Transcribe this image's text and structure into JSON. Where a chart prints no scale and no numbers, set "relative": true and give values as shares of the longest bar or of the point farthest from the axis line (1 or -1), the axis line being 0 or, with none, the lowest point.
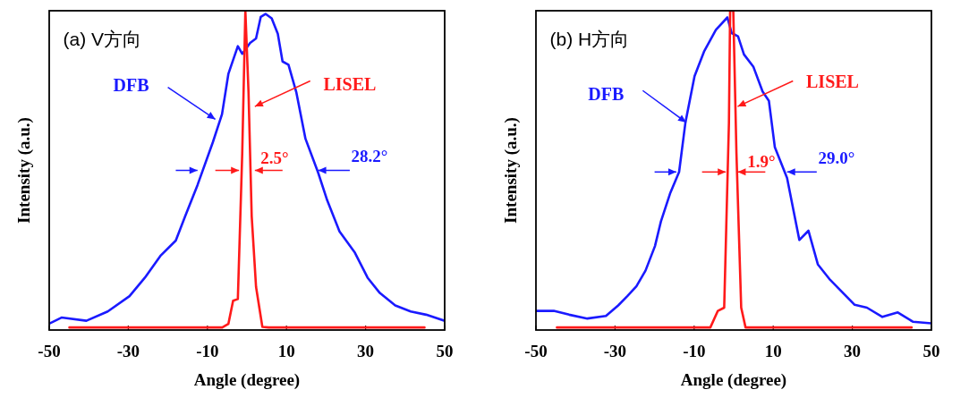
{
  "chart_data": [
    {
      "type": "line",
      "title": "(a) V方向",
      "xlabel": "Angle (degree)",
      "ylabel": "Intensity (a.u.)",
      "relative": true,
      "xlim": [
        -50,
        50
      ],
      "xticks": [
        -50,
        -30,
        -10,
        10,
        30,
        50
      ],
      "annotations": [
        "2.5°",
        "28.2°"
      ],
      "series": [
        {
          "name": "DFB",
          "color": "#1a1aff",
          "x": [
            -50,
            -46.9,
            -40.6,
            -35.2,
            -29.7,
            -25.8,
            -21.9,
            -18,
            -15.6,
            -12.5,
            -8.6,
            -6.3,
            -4.7,
            -2.3,
            -1.2,
            0.8,
            2.3,
            3.5,
            4.7,
            6.25,
            7.8,
            9,
            10.5,
            12.5,
            14.8,
            18,
            20.3,
            23.4,
            27.3,
            30.5,
            33.6,
            37.5,
            41.4,
            45.3,
            50
          ],
          "values": [
            0.02,
            0.039,
            0.029,
            0.058,
            0.106,
            0.164,
            0.232,
            0.28,
            0.357,
            0.454,
            0.589,
            0.676,
            0.802,
            0.889,
            0.865,
            0.899,
            0.913,
            0.981,
            0.99,
            0.976,
            0.928,
            0.841,
            0.831,
            0.744,
            0.599,
            0.493,
            0.406,
            0.309,
            0.242,
            0.164,
            0.116,
            0.077,
            0.058,
            0.048,
            0.029
          ]
        },
        {
          "name": "LISEL",
          "color": "#ff1a1a",
          "x": [
            -44.9,
            -6.25,
            -4.7,
            -3.5,
            -2.3,
            -1.2,
            -0.4,
            0.4,
            1.2,
            2.3,
            3.9,
            5.5,
            44.9
          ],
          "values": [
            0.008,
            0.008,
            0.019,
            0.092,
            0.097,
            0.551,
            1,
            0.744,
            0.357,
            0.135,
            0.01,
            0.008,
            0.008
          ]
        }
      ]
    },
    {
      "type": "line",
      "title": "(b) H方向",
      "xlabel": "Angle (degree)",
      "ylabel": "Intensity (a.u.)",
      "relative": true,
      "xlim": [
        -50,
        50
      ],
      "xticks": [
        -50,
        -30,
        -10,
        10,
        30,
        50
      ],
      "annotations": [
        "1.9°",
        "29.0°"
      ],
      "series": [
        {
          "name": "DFB",
          "color": "#1a1aff",
          "x": [
            -50,
            -45.5,
            -41.6,
            -37,
            -32.3,
            -29.2,
            -26.9,
            -24.6,
            -22.3,
            -19.9,
            -18.4,
            -16.1,
            -13.8,
            -12.2,
            -9.9,
            -7.5,
            -4.5,
            -1.6,
            -0.5,
            1.1,
            2.6,
            5,
            7.3,
            8.9,
            10.4,
            13.5,
            16.6,
            18.9,
            21.3,
            24.4,
            27.5,
            30.6,
            33.7,
            37.6,
            41.5,
            45.3,
            50
          ],
          "values": [
            0.06,
            0.06,
            0.048,
            0.036,
            0.044,
            0.077,
            0.106,
            0.137,
            0.186,
            0.263,
            0.34,
            0.427,
            0.495,
            0.65,
            0.795,
            0.872,
            0.94,
            0.979,
            0.93,
            0.92,
            0.863,
            0.824,
            0.747,
            0.718,
            0.573,
            0.476,
            0.282,
            0.311,
            0.205,
            0.157,
            0.118,
            0.079,
            0.07,
            0.041,
            0.055,
            0.026,
            0.021
          ]
        },
        {
          "name": "LISEL",
          "color": "#ff1a1a",
          "x": [
            -44.7,
            -5.9,
            -4,
            -2.4,
            -1.2,
            -0.9,
            -0.1,
            0.7,
            1.9,
            3,
            4.2,
            45
          ],
          "values": [
            0.008,
            0.008,
            0.06,
            0.07,
            0.65,
            1,
            1,
            0.553,
            0.07,
            0.008,
            0.008,
            0.008
          ]
        }
      ]
    }
  ]
}
